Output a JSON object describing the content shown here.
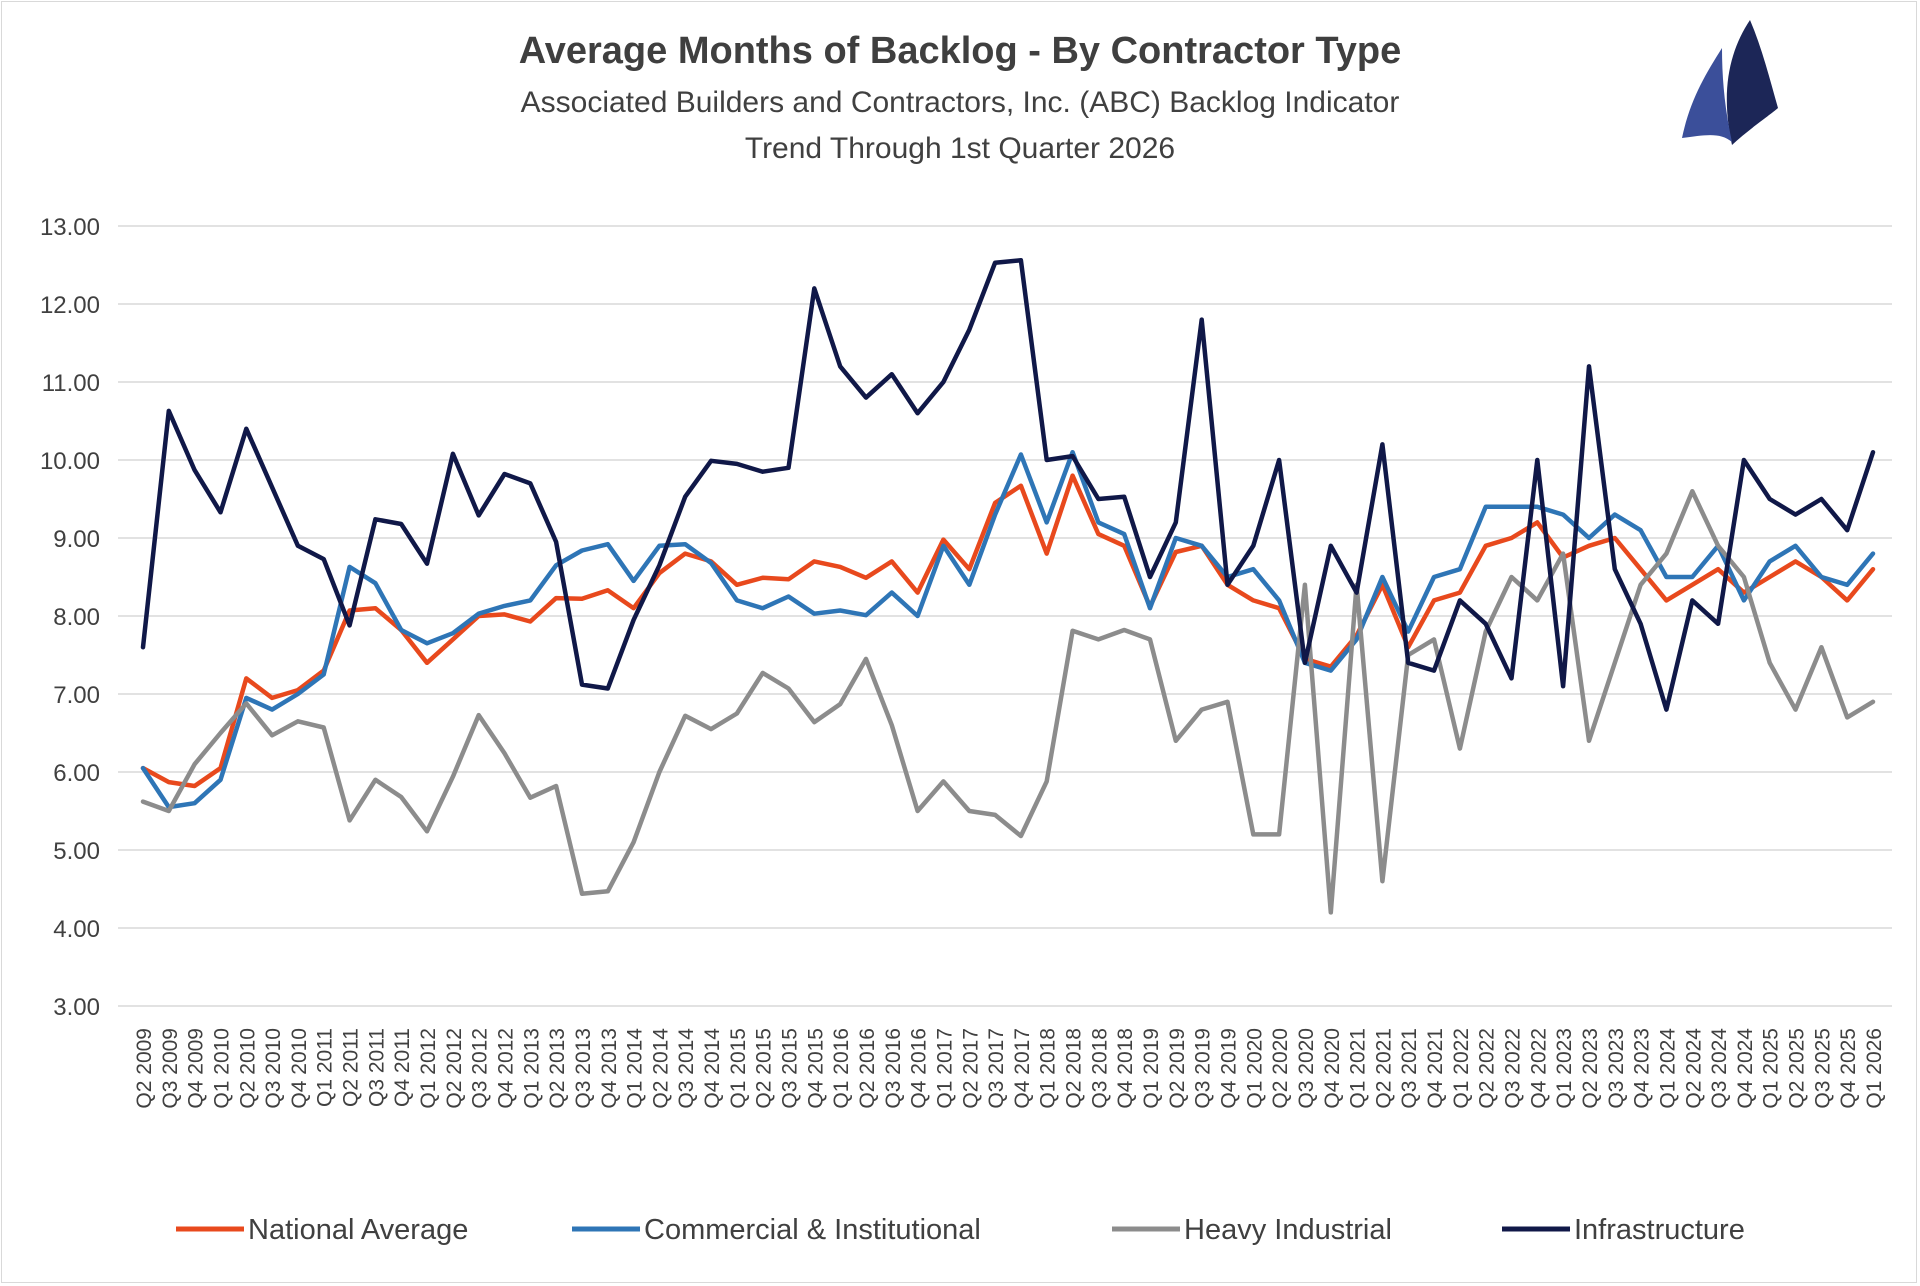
{
  "chart_data": {
    "type": "line",
    "title": "Average Months of Backlog - By Contractor Type",
    "subtitle1": "Associated Builders and Contractors, Inc. (ABC) Backlog Indicator",
    "subtitle2": "Trend Through 1st Quarter 2026",
    "ylim": [
      3,
      13
    ],
    "yticks": [
      "3.00",
      "4.00",
      "5.00",
      "6.00",
      "7.00",
      "8.00",
      "9.00",
      "10.00",
      "11.00",
      "12.00",
      "13.00"
    ],
    "grid": true,
    "legend_position": "bottom",
    "x": [
      "Q2 2009",
      "Q3 2009",
      "Q4 2009",
      "Q1 2010",
      "Q2 2010",
      "Q3 2010",
      "Q4 2010",
      "Q1 2011",
      "Q2 2011",
      "Q3 2011",
      "Q4 2011",
      "Q1 2012",
      "Q2 2012",
      "Q3 2012",
      "Q4 2012",
      "Q1 2013",
      "Q2 2013",
      "Q3 2013",
      "Q4 2013",
      "Q1 2014",
      "Q2 2014",
      "Q3 2014",
      "Q4 2014",
      "Q1 2015",
      "Q2 2015",
      "Q3 2015",
      "Q4 2015",
      "Q1 2016",
      "Q2 2016",
      "Q3 2016",
      "Q4 2016",
      "Q1 2017",
      "Q2 2017",
      "Q3 2017",
      "Q4 2017",
      "Q1 2018",
      "Q2 2018",
      "Q3 2018",
      "Q4 2018",
      "Q1 2019",
      "Q2 2019",
      "Q3 2019",
      "Q4 2019",
      "Q1 2020",
      "Q2 2020",
      "Q3 2020",
      "Q4 2020",
      "Q1 2021",
      "Q2 2021",
      "Q3 2021",
      "Q4 2021",
      "Q1 2022",
      "Q2 2022",
      "Q3 2022",
      "Q4 2022",
      "Q1 2023",
      "Q2 2023",
      "Q3 2023",
      "Q4 2023",
      "Q1 2024",
      "Q2 2024",
      "Q3 2024",
      "Q4 2024",
      "Q1 2025",
      "Q2 2025",
      "Q3 2025",
      "Q4 2025",
      "Q1 2026"
    ],
    "xtick_labels": [
      "Q2 2009",
      "Q3 2009",
      "Q4 2009",
      "Q1 2010",
      "Q2 2010",
      "Q3 2010",
      "Q4 2010",
      "Q1 2011",
      "Q2 2011",
      "Q3 2011",
      "Q4 2011",
      "Q1 2012",
      "Q2 2012",
      "Q3 2012",
      "Q4 2012",
      "Q1 2013",
      "Q2 2013",
      "Q3 2013",
      "Q4 2013",
      "Q1 2014",
      "Q2 2014",
      "Q3 2014",
      "Q4 2014",
      "Q1 2015",
      "Q2 2015",
      "Q3 2015",
      "Q4 2015",
      "Q1 2016",
      "Q2 2016",
      "Q3 2016",
      "Q4 2016",
      "Q1 2017",
      "Q2 2017",
      "Q3 2017",
      "Q4 2017",
      "Q1 2018",
      "Q2 2018",
      "Q3 2018",
      "Q4 2018",
      "Q1 2019",
      "Q2 2019",
      "Q3 2019",
      "Q4 2019",
      "Q1 2020",
      "Q2 2020",
      "Q3 2020",
      "Q4 2020",
      "Q1 2021",
      "Q2 2021",
      "Q3 2021",
      "Q4 2021",
      "Q1 2022",
      "Q2 2022",
      "Q3 2022",
      "Q4 2022",
      "Q1 2023",
      "Q2 2023",
      "Q3 2023",
      "Q4 2023",
      "Q1 2024",
      "Q2 2024",
      "Q3 2024",
      "Q4 2024",
      "Q1 2025",
      "Q2 2025",
      "Q3 2025",
      "Q4 2025",
      "Q1 2026"
    ],
    "series": [
      {
        "name": "National Average",
        "color": "#e8491d",
        "values": [
          6.05,
          5.87,
          5.82,
          6.05,
          7.2,
          6.95,
          7.05,
          7.3,
          8.07,
          8.1,
          7.82,
          7.4,
          7.7,
          8.0,
          8.02,
          7.93,
          8.23,
          8.22,
          8.33,
          8.1,
          8.55,
          8.8,
          8.7,
          8.4,
          8.49,
          8.47,
          8.7,
          8.63,
          8.49,
          8.7,
          8.3,
          8.98,
          8.6,
          9.45,
          9.67,
          8.8,
          9.8,
          9.05,
          8.9,
          8.12,
          8.82,
          8.9,
          8.4,
          8.2,
          8.1,
          7.45,
          7.35,
          7.75,
          8.4,
          7.6,
          8.2,
          8.3,
          8.9,
          9.0,
          9.2,
          8.75,
          8.9,
          9.0,
          8.6,
          8.2,
          8.4,
          8.6,
          8.3,
          8.5,
          8.7,
          8.5,
          8.2,
          8.6
        ]
      },
      {
        "name": "Commercial & Institutional",
        "color": "#2e75b6",
        "values": [
          6.05,
          5.55,
          5.6,
          5.9,
          6.95,
          6.8,
          7.0,
          7.25,
          8.63,
          8.42,
          7.82,
          7.65,
          7.78,
          8.03,
          8.13,
          8.2,
          8.65,
          8.84,
          8.92,
          8.45,
          8.9,
          8.92,
          8.68,
          8.2,
          8.1,
          8.25,
          8.03,
          8.07,
          8.01,
          8.3,
          8.0,
          8.9,
          8.4,
          9.3,
          10.07,
          9.2,
          10.1,
          9.2,
          9.05,
          8.1,
          9.0,
          8.9,
          8.5,
          8.6,
          8.2,
          7.4,
          7.3,
          7.7,
          8.5,
          7.8,
          8.5,
          8.6,
          9.4,
          9.4,
          9.4,
          9.3,
          9.0,
          9.3,
          9.1,
          8.5,
          8.5,
          8.9,
          8.2,
          8.7,
          8.9,
          8.5,
          8.4,
          8.8
        ]
      },
      {
        "name": "Heavy Industrial",
        "color": "#8c8c8c",
        "values": [
          5.62,
          5.5,
          6.1,
          6.5,
          6.88,
          6.47,
          6.65,
          6.57,
          5.38,
          5.9,
          5.68,
          5.24,
          5.94,
          6.73,
          6.24,
          5.67,
          5.82,
          4.44,
          4.47,
          5.1,
          6.0,
          6.72,
          6.55,
          6.75,
          7.27,
          7.07,
          6.64,
          6.87,
          7.45,
          6.6,
          5.5,
          5.88,
          5.5,
          5.45,
          5.18,
          5.88,
          7.81,
          7.7,
          7.82,
          7.7,
          6.4,
          6.8,
          6.9,
          5.2,
          5.2,
          8.4,
          4.2,
          8.4,
          4.6,
          7.5,
          7.7,
          6.3,
          7.8,
          8.5,
          8.2,
          8.8,
          6.4,
          7.4,
          8.4,
          8.8,
          9.6,
          8.9,
          8.5,
          7.4,
          6.8,
          7.6,
          6.7,
          6.9
        ]
      },
      {
        "name": "Infrastructure",
        "color": "#101848",
        "values": [
          7.6,
          10.63,
          9.87,
          9.33,
          10.4,
          9.65,
          8.9,
          8.73,
          7.88,
          9.24,
          9.18,
          8.67,
          10.08,
          9.29,
          9.82,
          9.7,
          8.95,
          7.12,
          7.07,
          7.95,
          8.65,
          9.53,
          9.99,
          9.95,
          9.85,
          9.9,
          12.2,
          11.2,
          10.8,
          11.1,
          10.6,
          11.0,
          11.67,
          12.53,
          12.56,
          10.0,
          10.05,
          9.5,
          9.53,
          8.5,
          9.2,
          11.8,
          8.4,
          8.9,
          10.0,
          7.4,
          8.9,
          8.3,
          10.2,
          7.4,
          7.3,
          8.2,
          7.9,
          7.2,
          10.0,
          7.1,
          11.2,
          8.6,
          7.9,
          6.8,
          8.2,
          7.9,
          10.0,
          9.5,
          9.3,
          9.5,
          9.1,
          10.1
        ]
      }
    ]
  }
}
